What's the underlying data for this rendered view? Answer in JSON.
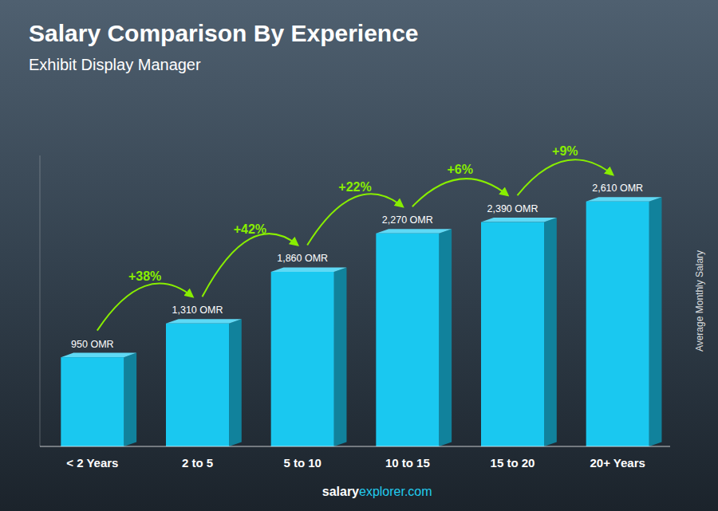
{
  "chart_data": {
    "type": "bar",
    "title": "Salary Comparison By Experience",
    "subtitle": "Exhibit Display Manager",
    "categories": [
      "< 2 Years",
      "2 to 5",
      "5 to 10",
      "10 to 15",
      "15 to 20",
      "20+ Years"
    ],
    "values": [
      950,
      1310,
      1860,
      2270,
      2390,
      2610
    ],
    "value_labels": [
      "950 OMR",
      "1,310 OMR",
      "1,860 OMR",
      "2,270 OMR",
      "2,390 OMR",
      "2,610 OMR"
    ],
    "data_labels": true,
    "color": "#1ac8f0",
    "ylabel": "Average Monthly Salary",
    "annotations": [
      null,
      "+38%",
      "+42%",
      "+22%",
      "+6%",
      "+9%"
    ],
    "footer": [
      "salary",
      "explorer.com"
    ],
    "ylim": [
      0,
      3100
    ],
    "tick_labels": "x",
    "grid": false
  }
}
